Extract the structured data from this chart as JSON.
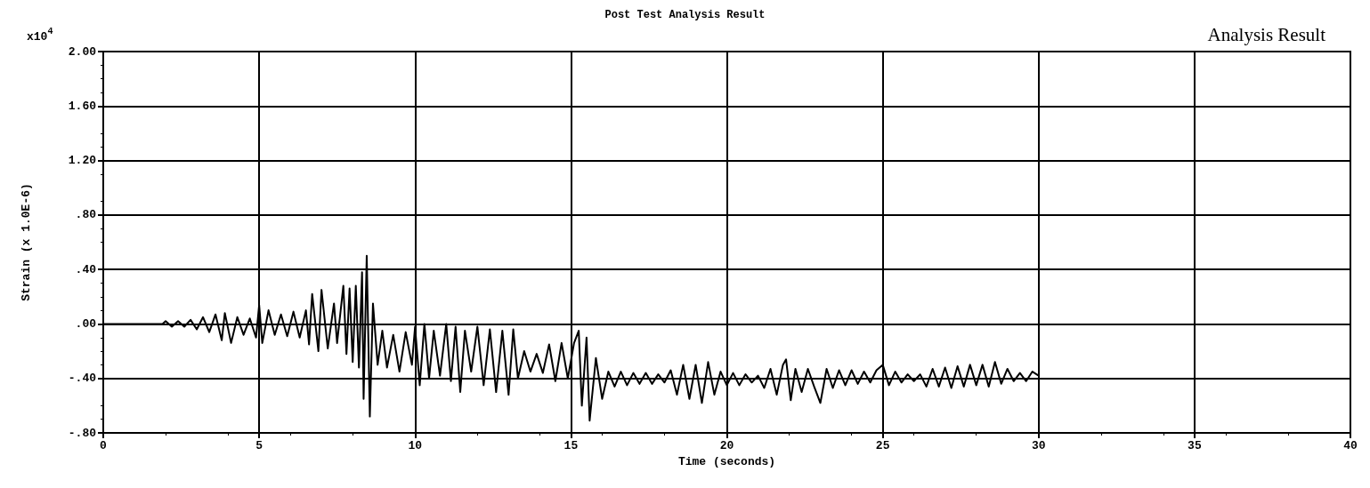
{
  "chart_data": {
    "type": "line",
    "title": "Post Test Analysis Result",
    "xlabel": "Time (seconds)",
    "ylabel": "Strain (x 1.0E-6)",
    "annotations": [
      "x10$^{4}$",
      "Analysis Result"
    ],
    "xlim": [
      0,
      40
    ],
    "xticks": [
      0,
      5,
      10,
      15,
      20,
      25,
      30,
      35,
      40
    ],
    "ylim": [
      -0.8,
      2.0
    ],
    "yticks": [
      {
        "value": -0.8,
        "label": "-.80"
      },
      {
        "value": -0.4,
        "label": "-.40"
      },
      {
        "value": 0,
        "label": ".00"
      },
      {
        "value": 0.4,
        "label": ".40"
      },
      {
        "value": 0.8,
        "label": ".80"
      },
      {
        "value": 1.2,
        "label": "1.20"
      },
      {
        "value": 1.6,
        "label": "1.60"
      },
      {
        "value": 2.0,
        "label": "2.00"
      }
    ],
    "grid": true,
    "marker": "none",
    "line_style": "solid",
    "series": [
      {
        "color": "#000000",
        "x": [
          0,
          1.9,
          2.0,
          2.2,
          2.4,
          2.6,
          2.8,
          3.0,
          3.2,
          3.4,
          3.6,
          3.8,
          3.9,
          4.1,
          4.3,
          4.5,
          4.7,
          4.9,
          5.0,
          5.1,
          5.3,
          5.5,
          5.7,
          5.9,
          6.1,
          6.3,
          6.5,
          6.6,
          6.7,
          6.9,
          7.0,
          7.2,
          7.4,
          7.5,
          7.7,
          7.8,
          7.9,
          8.0,
          8.1,
          8.2,
          8.3,
          8.35,
          8.45,
          8.55,
          8.65,
          8.8,
          8.95,
          9.1,
          9.3,
          9.5,
          9.7,
          9.9,
          10.0,
          10.15,
          10.3,
          10.45,
          10.6,
          10.8,
          11.0,
          11.15,
          11.3,
          11.45,
          11.6,
          11.8,
          12.0,
          12.2,
          12.4,
          12.6,
          12.8,
          13.0,
          13.15,
          13.3,
          13.5,
          13.7,
          13.9,
          14.1,
          14.3,
          14.5,
          14.7,
          14.9,
          15.1,
          15.25,
          15.35,
          15.5,
          15.6,
          15.8,
          16.0,
          16.2,
          16.4,
          16.6,
          16.8,
          17.0,
          17.2,
          17.4,
          17.6,
          17.8,
          18.0,
          18.2,
          18.4,
          18.6,
          18.8,
          19.0,
          19.2,
          19.4,
          19.6,
          19.8,
          20.0,
          20.2,
          20.4,
          20.6,
          20.8,
          21.0,
          21.2,
          21.4,
          21.6,
          21.8,
          21.9,
          22.05,
          22.2,
          22.4,
          22.6,
          22.8,
          23.0,
          23.2,
          23.4,
          23.6,
          23.8,
          24.0,
          24.2,
          24.4,
          24.6,
          24.8,
          25.0,
          25.2,
          25.4,
          25.6,
          25.8,
          26.0,
          26.2,
          26.4,
          26.6,
          26.8,
          27.0,
          27.2,
          27.4,
          27.6,
          27.8,
          28.0,
          28.2,
          28.4,
          28.6,
          28.8,
          29.0,
          29.2,
          29.4,
          29.6,
          29.8,
          30.0
        ],
        "values": [
          0,
          0,
          0.02,
          -0.02,
          0.02,
          -0.02,
          0.03,
          -0.04,
          0.05,
          -0.06,
          0.07,
          -0.12,
          0.08,
          -0.14,
          0.05,
          -0.08,
          0.04,
          -0.1,
          0.14,
          -0.14,
          0.1,
          -0.08,
          0.07,
          -0.09,
          0.09,
          -0.1,
          0.1,
          -0.15,
          0.22,
          -0.2,
          0.25,
          -0.18,
          0.15,
          -0.14,
          0.28,
          -0.22,
          0.26,
          -0.28,
          0.28,
          -0.32,
          0.38,
          -0.55,
          0.5,
          -0.68,
          0.15,
          -0.3,
          -0.05,
          -0.32,
          -0.08,
          -0.35,
          -0.06,
          -0.3,
          -0.02,
          -0.45,
          0.0,
          -0.4,
          -0.05,
          -0.38,
          0.0,
          -0.42,
          -0.02,
          -0.5,
          -0.05,
          -0.35,
          -0.02,
          -0.45,
          -0.04,
          -0.5,
          -0.05,
          -0.52,
          -0.04,
          -0.4,
          -0.2,
          -0.35,
          -0.22,
          -0.36,
          -0.15,
          -0.42,
          -0.14,
          -0.4,
          -0.14,
          -0.05,
          -0.6,
          -0.1,
          -0.71,
          -0.25,
          -0.55,
          -0.35,
          -0.46,
          -0.35,
          -0.45,
          -0.36,
          -0.44,
          -0.36,
          -0.44,
          -0.37,
          -0.43,
          -0.34,
          -0.52,
          -0.3,
          -0.55,
          -0.3,
          -0.58,
          -0.28,
          -0.52,
          -0.35,
          -0.45,
          -0.36,
          -0.45,
          -0.37,
          -0.43,
          -0.38,
          -0.47,
          -0.33,
          -0.52,
          -0.3,
          -0.26,
          -0.56,
          -0.33,
          -0.5,
          -0.33,
          -0.46,
          -0.58,
          -0.33,
          -0.47,
          -0.34,
          -0.45,
          -0.34,
          -0.44,
          -0.35,
          -0.43,
          -0.34,
          -0.3,
          -0.45,
          -0.35,
          -0.43,
          -0.37,
          -0.42,
          -0.37,
          -0.46,
          -0.33,
          -0.46,
          -0.32,
          -0.47,
          -0.31,
          -0.46,
          -0.3,
          -0.45,
          -0.3,
          -0.46,
          -0.28,
          -0.44,
          -0.33,
          -0.42,
          -0.36,
          -0.42,
          -0.35,
          -0.38
        ]
      }
    ]
  }
}
